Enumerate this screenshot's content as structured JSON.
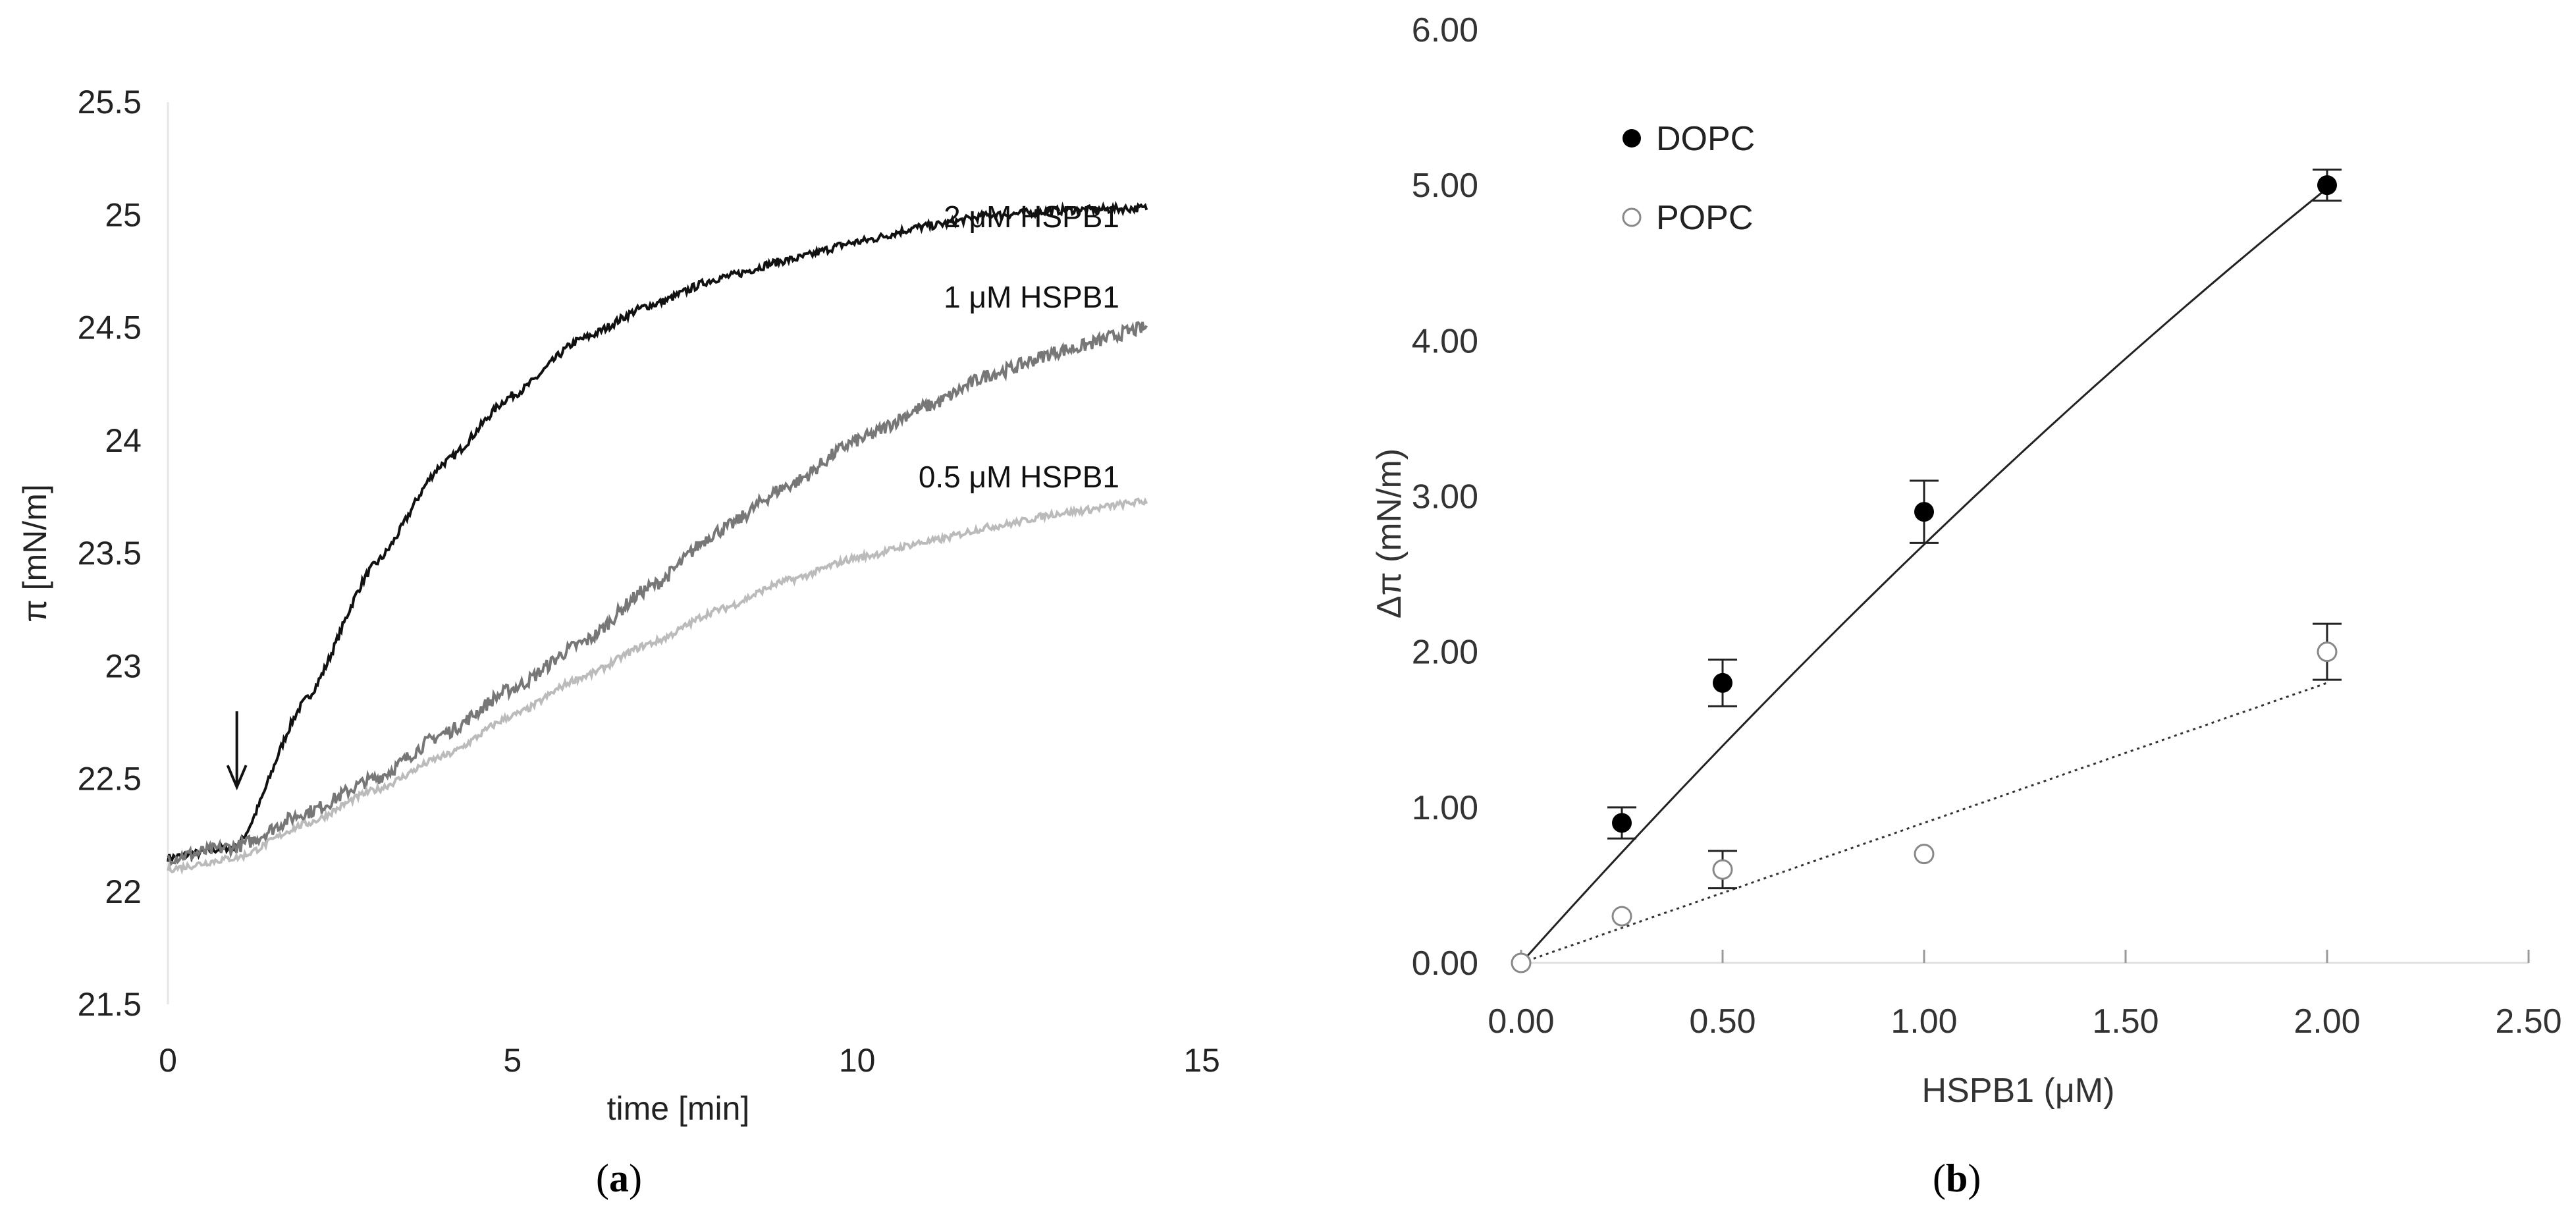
{
  "chart_data": [
    {
      "type": "line",
      "panel": "a",
      "caption": "a",
      "xlabel": "time [min]",
      "ylabel": "π [mN/m]",
      "xlim": [
        0,
        15
      ],
      "ylim": [
        21.5,
        25.5
      ],
      "xticks": [
        "0",
        "5",
        "10",
        "15"
      ],
      "yticks": [
        "21.5",
        "22",
        "22.5",
        "23",
        "23.5",
        "24",
        "24.5",
        "25",
        "25.5"
      ],
      "arrow_at_time_min": 1.0,
      "series": [
        {
          "name": "2 μM HSPB1",
          "color": "#111111",
          "x": [
            0,
            1.0,
            2,
            3,
            4,
            5,
            6,
            7,
            8,
            9,
            10,
            11,
            12,
            13,
            14.2
          ],
          "y": [
            22.15,
            22.2,
            22.85,
            23.45,
            23.9,
            24.2,
            24.45,
            24.6,
            24.72,
            24.8,
            24.88,
            24.95,
            25.0,
            25.02,
            25.03
          ]
        },
        {
          "name": "1 μM HSPB1",
          "color": "#777777",
          "x": [
            0,
            1,
            2,
            3,
            4,
            5,
            6,
            7,
            8,
            9,
            10,
            11,
            12,
            13,
            14.2
          ],
          "y": [
            22.15,
            22.2,
            22.35,
            22.5,
            22.7,
            22.9,
            23.1,
            23.35,
            23.6,
            23.8,
            24.0,
            24.15,
            24.3,
            24.4,
            24.5
          ]
        },
        {
          "name": "0.5 μM HSPB1",
          "color": "#bbbbbb",
          "x": [
            0,
            1,
            2,
            3,
            4,
            5,
            6,
            7,
            8,
            9,
            10,
            11,
            12,
            13,
            14.2
          ],
          "y": [
            22.1,
            22.15,
            22.3,
            22.45,
            22.6,
            22.78,
            22.95,
            23.1,
            23.25,
            23.38,
            23.48,
            23.55,
            23.62,
            23.68,
            23.73
          ]
        }
      ]
    },
    {
      "type": "scatter",
      "panel": "b",
      "caption": "b",
      "xlabel": "HSPB1 (μM)",
      "ylabel": "Δπ (mN/m)",
      "xlim": [
        0,
        2.5
      ],
      "ylim": [
        0,
        6
      ],
      "xticks": [
        "0.00",
        "0.50",
        "1.00",
        "1.50",
        "2.00",
        "2.50"
      ],
      "yticks": [
        "0.00",
        "1.00",
        "2.00",
        "3.00",
        "4.00",
        "5.00",
        "6.00"
      ],
      "legend_position": "top-left",
      "series": [
        {
          "name": "DOPC",
          "marker": "filled-circle",
          "fit": "solid",
          "x": [
            0,
            0.25,
            0.5,
            1.0,
            2.0
          ],
          "y": [
            0,
            0.9,
            1.8,
            2.9,
            5.0
          ],
          "error": [
            0,
            0.1,
            0.15,
            0.2,
            0.1
          ],
          "fit_y": [
            0,
            0.68,
            1.33,
            2.55,
            4.65,
            5.0
          ]
        },
        {
          "name": "POPC",
          "marker": "open-circle",
          "fit": "dotted",
          "x": [
            0,
            0.25,
            0.5,
            1.0,
            2.0
          ],
          "y": [
            0,
            0.3,
            0.6,
            0.7,
            2.0
          ],
          "error": [
            0,
            0.0,
            0.12,
            0.0,
            0.18
          ],
          "fit_x": [
            0,
            2.0
          ],
          "fit_y": [
            0,
            1.8
          ]
        }
      ]
    }
  ]
}
